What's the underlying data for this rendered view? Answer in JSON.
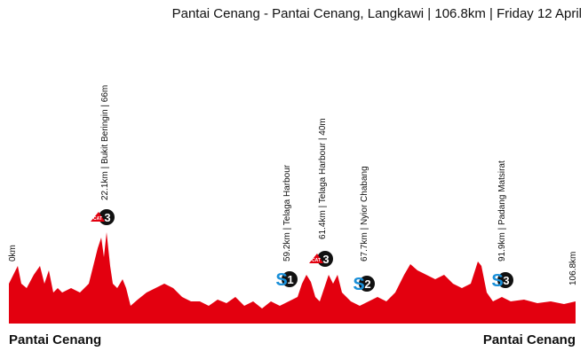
{
  "header": {
    "title": "Pantai Cenang - Pantai Cenang, Langkawi | 106.8km | Friday 12 April"
  },
  "profile": {
    "start_distance": "0km",
    "end_distance": "106.8km",
    "waypoints": [
      {
        "label": "22.1km | Bukit Beringin | 66m"
      },
      {
        "label": "59.2km | Telaga Harbour"
      },
      {
        "label": "61.4km | Telaga Harbour | 40m"
      },
      {
        "label": "67.7km | Nyior Chabang"
      },
      {
        "label": "91.9km | Padang Matsirat"
      }
    ],
    "badges": [
      {
        "tag": "CAT",
        "number": "3"
      },
      {
        "tag": "S",
        "number": "1"
      },
      {
        "tag": "CAT",
        "number": "3"
      },
      {
        "tag": "S",
        "number": "2"
      },
      {
        "tag": "S",
        "number": "3"
      }
    ],
    "start_town": "Pantai Cenang",
    "finish_town": "Pantai Cenang"
  }
}
